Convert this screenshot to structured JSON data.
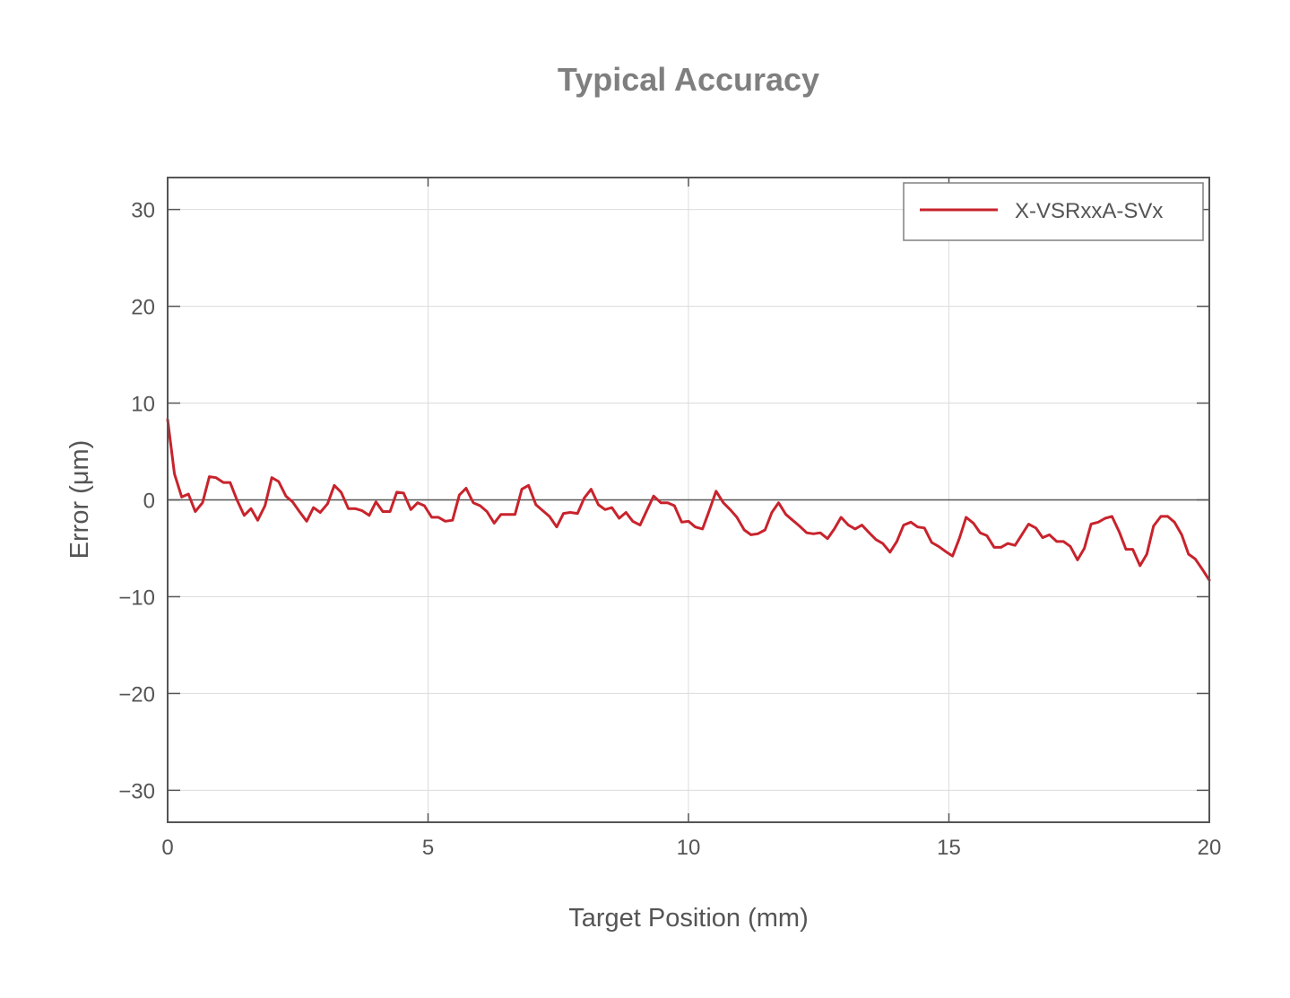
{
  "chart_data": {
    "type": "line",
    "title": "Typical Accuracy",
    "xlabel": "Target Position (mm)",
    "ylabel": "Error (μm)",
    "xlim": [
      0,
      20
    ],
    "ylim": [
      -33.3,
      33.3
    ],
    "x_ticks": [
      0,
      5,
      10,
      15,
      20
    ],
    "y_ticks": [
      -30,
      -20,
      -10,
      0,
      10,
      20,
      30
    ],
    "x_tick_labels": [
      "0",
      "5",
      "10",
      "15",
      "20"
    ],
    "y_tick_labels": [
      "−30",
      "−20",
      "−10",
      "0",
      "10",
      "20",
      "30"
    ],
    "grid": true,
    "zero_line": true,
    "legend_position": "top-right",
    "colors": {
      "series": "#c8232c",
      "axis": "#555555",
      "grid": "#dcdcdc"
    },
    "series": [
      {
        "name": "X-VSRxxA-SVx",
        "x": [
          0,
          0.13,
          0.27,
          0.4,
          0.53,
          0.67,
          0.8,
          0.93,
          1.07,
          1.2,
          1.33,
          1.47,
          1.6,
          1.73,
          1.87,
          2.0,
          2.13,
          2.27,
          2.4,
          2.53,
          2.67,
          2.8,
          2.93,
          3.07,
          3.2,
          3.33,
          3.47,
          3.6,
          3.73,
          3.87,
          4.0,
          4.13,
          4.27,
          4.4,
          4.53,
          4.67,
          4.8,
          4.93,
          5.07,
          5.2,
          5.33,
          5.47,
          5.6,
          5.73,
          5.87,
          6.0,
          6.13,
          6.27,
          6.4,
          6.53,
          6.67,
          6.8,
          6.93,
          7.07,
          7.2,
          7.33,
          7.47,
          7.6,
          7.73,
          7.87,
          8.0,
          8.13,
          8.27,
          8.4,
          8.53,
          8.67,
          8.8,
          8.93,
          9.07,
          9.2,
          9.33,
          9.47,
          9.6,
          9.73,
          9.87,
          10.0,
          10.13,
          10.27,
          10.4,
          10.53,
          10.67,
          10.8,
          10.93,
          11.07,
          11.2,
          11.33,
          11.47,
          11.6,
          11.73,
          11.87,
          12.0,
          12.13,
          12.27,
          12.4,
          12.53,
          12.67,
          12.8,
          12.93,
          13.07,
          13.2,
          13.33,
          13.47,
          13.6,
          13.73,
          13.87,
          14.0,
          14.13,
          14.27,
          14.4,
          14.53,
          14.67,
          14.8,
          14.93,
          15.07,
          15.2,
          15.33,
          15.47,
          15.6,
          15.73,
          15.87,
          16.0,
          16.13,
          16.27,
          16.4,
          16.53,
          16.67,
          16.8,
          16.93,
          17.07,
          17.2,
          17.33,
          17.47,
          17.6,
          17.73,
          17.87,
          18.0,
          18.13,
          18.27,
          18.4,
          18.53,
          18.67,
          18.8,
          18.93,
          19.07,
          19.2,
          19.33,
          19.47,
          19.6,
          19.73,
          19.87,
          20.0
        ],
        "values": [
          8.3,
          2.7,
          0.3,
          0.6,
          -1.2,
          -0.3,
          2.4,
          2.3,
          1.8,
          1.8,
          0.0,
          -1.6,
          -0.9,
          -2.1,
          -0.6,
          2.3,
          1.9,
          0.4,
          -0.2,
          -1.2,
          -2.2,
          -0.8,
          -1.3,
          -0.4,
          1.5,
          0.8,
          -0.9,
          -0.9,
          -1.1,
          -1.6,
          -0.2,
          -1.2,
          -1.2,
          0.8,
          0.7,
          -1.0,
          -0.3,
          -0.6,
          -1.8,
          -1.8,
          -2.2,
          -2.1,
          0.5,
          1.2,
          -0.3,
          -0.6,
          -1.2,
          -2.4,
          -1.5,
          -1.5,
          -1.5,
          1.1,
          1.5,
          -0.5,
          -1.1,
          -1.7,
          -2.8,
          -1.4,
          -1.3,
          -1.4,
          0.2,
          1.1,
          -0.5,
          -1.0,
          -0.8,
          -1.9,
          -1.3,
          -2.2,
          -2.6,
          -1.1,
          0.4,
          -0.3,
          -0.3,
          -0.6,
          -2.3,
          -2.2,
          -2.8,
          -3.0,
          -1.1,
          0.9,
          -0.3,
          -1.0,
          -1.8,
          -3.1,
          -3.6,
          -3.5,
          -3.1,
          -1.3,
          -0.3,
          -1.5,
          -2.1,
          -2.7,
          -3.4,
          -3.5,
          -3.4,
          -4.0,
          -3.0,
          -1.8,
          -2.6,
          -3.0,
          -2.6,
          -3.4,
          -4.1,
          -4.5,
          -5.4,
          -4.3,
          -2.6,
          -2.3,
          -2.8,
          -2.9,
          -4.4,
          -4.8,
          -5.3,
          -5.8,
          -4.0,
          -1.8,
          -2.4,
          -3.4,
          -3.7,
          -4.9,
          -4.9,
          -4.5,
          -4.7,
          -3.6,
          -2.5,
          -2.9,
          -3.9,
          -3.6,
          -4.3,
          -4.3,
          -4.8,
          -6.2,
          -5.0,
          -2.5,
          -2.3,
          -1.9,
          -1.7,
          -3.3,
          -5.1,
          -5.1,
          -6.8,
          -5.6,
          -2.7,
          -1.7,
          -1.7,
          -2.3,
          -3.6,
          -5.6,
          -6.1,
          -7.2,
          -8.3
        ]
      }
    ]
  }
}
